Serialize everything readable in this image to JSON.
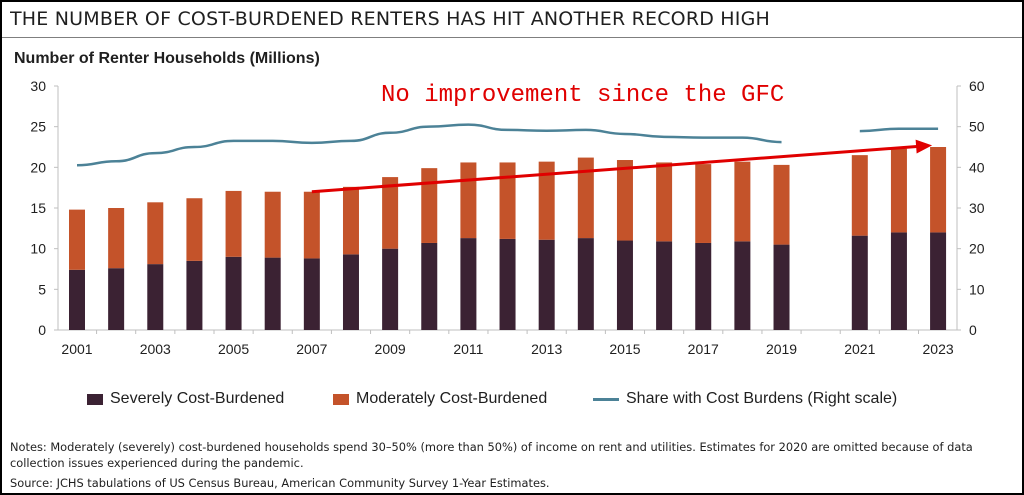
{
  "title": "THE NUMBER OF COST-BURDENED RENTERS HAS HIT ANOTHER RECORD HIGH",
  "notes": "Notes: Moderately (severely) cost-burdened households spend 30–50% (more than 50%) of income on rent and utilities. Estimates for 2020 are omitted because of data collection issues experienced during the pandemic.",
  "source": "Source: JCHS tabulations of US Census Bureau, American Community Survey 1-Year Estimates.",
  "annotation": {
    "text": "No improvement since the GFC",
    "color": "#e00000",
    "arrow_from": {
      "x": 2007,
      "y": 17.0
    },
    "arrow_to": {
      "x": 2023,
      "y": 22.7
    }
  },
  "colors": {
    "severe": "#3b2233",
    "moderate": "#c4532a",
    "share": "#4c8297",
    "arrow": "#e00000"
  },
  "chart_data": {
    "type": "bar",
    "stacked": true,
    "ylabel": "Number of Renter Households (Millions)",
    "ylim": [
      0,
      30
    ],
    "y_ticks": [
      0,
      5,
      10,
      15,
      20,
      25,
      30
    ],
    "y2lim": [
      0,
      60
    ],
    "y2_ticks": [
      0,
      10,
      20,
      30,
      40,
      50,
      60
    ],
    "x_tick_labels": [
      "2001",
      "2003",
      "2005",
      "2007",
      "2009",
      "2011",
      "2013",
      "2015",
      "2017",
      "2019",
      "2021",
      "2023"
    ],
    "grid": false,
    "legend_position": "bottom",
    "categories": [
      2001,
      2002,
      2003,
      2004,
      2005,
      2006,
      2007,
      2008,
      2009,
      2010,
      2011,
      2012,
      2013,
      2014,
      2015,
      2016,
      2017,
      2018,
      2019,
      2020,
      2021,
      2022,
      2023
    ],
    "series": [
      {
        "name": "Severely Cost-Burdened",
        "axis": "left",
        "values": [
          7.4,
          7.6,
          8.1,
          8.5,
          9.0,
          8.9,
          8.8,
          9.3,
          10.0,
          10.7,
          11.3,
          11.2,
          11.1,
          11.3,
          11.0,
          10.9,
          10.7,
          10.9,
          10.5,
          null,
          11.6,
          12.0,
          12.0
        ]
      },
      {
        "name": "Moderately Cost-Burdened",
        "axis": "left",
        "values": [
          7.4,
          7.4,
          7.6,
          7.7,
          8.1,
          8.1,
          8.2,
          8.3,
          8.8,
          9.2,
          9.3,
          9.4,
          9.6,
          9.9,
          9.9,
          9.7,
          9.7,
          9.8,
          9.8,
          null,
          9.9,
          10.3,
          10.5
        ]
      },
      {
        "name": "Share with Cost Burdens (Right scale)",
        "type": "line",
        "axis": "right",
        "values": [
          40.5,
          41.5,
          43.5,
          45.0,
          46.5,
          46.5,
          46.0,
          46.5,
          48.5,
          50.0,
          50.5,
          49.2,
          49.0,
          49.2,
          48.2,
          47.5,
          47.3,
          47.3,
          46.2,
          null,
          48.9,
          49.5,
          49.5
        ]
      }
    ]
  }
}
